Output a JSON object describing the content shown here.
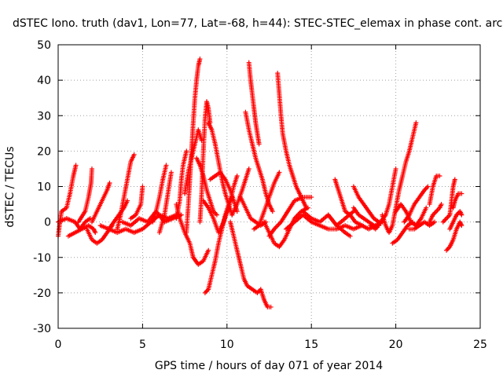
{
  "chart_data": {
    "type": "scatter",
    "title": "dSTEC Iono. truth (dav1, Lon=77, Lat=-68, h=44): STEC-STEC_elemax in phase cont. arc",
    "xlabel": "GPS time / hours of day 071 of year 2014",
    "ylabel": "dSTEC  / TECUs",
    "xlim": [
      0,
      25
    ],
    "ylim": [
      -30,
      50
    ],
    "xticks": [
      "0",
      "5",
      "10",
      "15",
      "20",
      "25"
    ],
    "yticks": [
      "-30",
      "-20",
      "-10",
      "0",
      "10",
      "20",
      "30",
      "40",
      "50"
    ],
    "grid": true,
    "legend": "none",
    "marker": "plus",
    "color": "#ff0000",
    "arcs": [
      [
        [
          0.0,
          -4
        ],
        [
          0.1,
          0
        ],
        [
          0.2,
          3
        ],
        [
          0.5,
          4
        ],
        [
          0.7,
          8
        ],
        [
          0.9,
          13
        ],
        [
          1.05,
          16
        ]
      ],
      [
        [
          0.0,
          0
        ],
        [
          0.5,
          1
        ],
        [
          1.0,
          0
        ],
        [
          1.3,
          -2
        ],
        [
          1.6,
          0
        ],
        [
          1.9,
          1
        ]
      ],
      [
        [
          0.6,
          -4
        ],
        [
          1.0,
          -3
        ],
        [
          1.4,
          -2
        ],
        [
          1.8,
          -1
        ],
        [
          2.1,
          -2
        ],
        [
          2.2,
          -3
        ]
      ],
      [
        [
          1.2,
          0
        ],
        [
          1.6,
          3
        ],
        [
          1.8,
          7
        ],
        [
          1.95,
          11
        ],
        [
          2.0,
          15
        ]
      ],
      [
        [
          1.7,
          -2
        ],
        [
          2.0,
          -5
        ],
        [
          2.3,
          -6
        ],
        [
          2.6,
          -5
        ],
        [
          2.9,
          -3
        ],
        [
          3.2,
          -1
        ]
      ],
      [
        [
          2.0,
          0
        ],
        [
          2.3,
          3
        ],
        [
          2.6,
          6
        ],
        [
          2.9,
          9
        ],
        [
          3.05,
          11
        ]
      ],
      [
        [
          3.0,
          -2
        ],
        [
          3.3,
          0
        ],
        [
          3.6,
          2
        ],
        [
          3.9,
          4
        ],
        [
          4.1,
          6
        ]
      ],
      [
        [
          3.5,
          -2
        ],
        [
          3.7,
          2
        ],
        [
          3.9,
          7
        ],
        [
          4.1,
          12
        ],
        [
          4.3,
          17
        ],
        [
          4.5,
          19
        ]
      ],
      [
        [
          2.5,
          -1
        ],
        [
          3.0,
          -2
        ],
        [
          3.5,
          -3
        ],
        [
          4.0,
          -2
        ],
        [
          4.5,
          -3
        ],
        [
          5.0,
          -2
        ],
        [
          5.5,
          0
        ],
        [
          6.0,
          2
        ],
        [
          6.5,
          1
        ],
        [
          7.0,
          2
        ]
      ],
      [
        [
          3.8,
          0
        ],
        [
          4.3,
          -1
        ],
        [
          4.8,
          1
        ],
        [
          5.3,
          0
        ],
        [
          5.8,
          3
        ],
        [
          6.3,
          0
        ],
        [
          6.8,
          1
        ],
        [
          7.3,
          2
        ]
      ],
      [
        [
          5.0,
          10
        ],
        [
          4.9,
          5
        ],
        [
          4.6,
          2
        ],
        [
          4.3,
          1
        ]
      ],
      [
        [
          5.6,
          0
        ],
        [
          5.8,
          3
        ],
        [
          6.0,
          7
        ],
        [
          6.2,
          12
        ],
        [
          6.4,
          16
        ]
      ],
      [
        [
          6.0,
          -3
        ],
        [
          6.3,
          2
        ],
        [
          6.5,
          8
        ],
        [
          6.7,
          14
        ]
      ],
      [
        [
          7.0,
          1
        ],
        [
          7.2,
          6
        ],
        [
          7.3,
          12
        ],
        [
          7.4,
          16
        ],
        [
          7.6,
          20
        ]
      ],
      [
        [
          7.0,
          5
        ],
        [
          7.2,
          1
        ],
        [
          7.5,
          -3
        ],
        [
          7.8,
          -6
        ],
        [
          8.0,
          -10
        ],
        [
          8.3,
          -12
        ],
        [
          8.6,
          -11
        ],
        [
          8.9,
          -8
        ]
      ],
      [
        [
          7.6,
          -3
        ],
        [
          7.7,
          4
        ],
        [
          7.8,
          12
        ],
        [
          7.9,
          20
        ],
        [
          8.0,
          28
        ],
        [
          8.1,
          35
        ],
        [
          8.2,
          40
        ],
        [
          8.3,
          44
        ],
        [
          8.4,
          46
        ]
      ],
      [
        [
          7.5,
          8
        ],
        [
          7.7,
          14
        ],
        [
          7.9,
          18
        ],
        [
          8.1,
          22
        ],
        [
          8.3,
          26
        ],
        [
          8.5,
          23
        ]
      ],
      [
        [
          8.4,
          0
        ],
        [
          8.5,
          8
        ],
        [
          8.6,
          20
        ],
        [
          8.7,
          29
        ],
        [
          8.8,
          34
        ],
        [
          8.9,
          32
        ],
        [
          9.0,
          28
        ]
      ],
      [
        [
          8.9,
          28
        ],
        [
          9.0,
          27
        ],
        [
          9.1,
          26
        ],
        [
          9.3,
          22
        ],
        [
          9.5,
          17
        ],
        [
          9.7,
          12
        ],
        [
          9.9,
          8
        ],
        [
          10.1,
          5
        ],
        [
          10.3,
          2
        ]
      ],
      [
        [
          8.2,
          18
        ],
        [
          8.4,
          16
        ],
        [
          8.6,
          13
        ],
        [
          8.8,
          9
        ],
        [
          9.0,
          6
        ],
        [
          9.2,
          3
        ],
        [
          9.4,
          2
        ]
      ],
      [
        [
          8.7,
          -20
        ],
        [
          8.9,
          -19
        ],
        [
          9.1,
          -15
        ],
        [
          9.3,
          -11
        ],
        [
          9.5,
          -6
        ],
        [
          9.7,
          -2
        ],
        [
          9.9,
          2
        ],
        [
          10.1,
          5
        ],
        [
          10.3,
          7
        ]
      ],
      [
        [
          9.0,
          12
        ],
        [
          9.3,
          13
        ],
        [
          9.6,
          14
        ],
        [
          9.9,
          12
        ],
        [
          10.2,
          9
        ],
        [
          10.4,
          6
        ],
        [
          10.6,
          3
        ]
      ],
      [
        [
          8.6,
          6
        ],
        [
          8.9,
          4
        ],
        [
          9.2,
          1
        ],
        [
          9.5,
          -3
        ],
        [
          9.8,
          0
        ],
        [
          10.1,
          4
        ],
        [
          10.4,
          10
        ],
        [
          10.6,
          13
        ]
      ],
      [
        [
          10.2,
          0
        ],
        [
          10.4,
          -4
        ],
        [
          10.6,
          -8
        ],
        [
          10.8,
          -12
        ],
        [
          11.0,
          -16
        ],
        [
          11.2,
          -18
        ],
        [
          11.5,
          -19
        ],
        [
          11.8,
          -20
        ],
        [
          12.0,
          -19
        ],
        [
          12.2,
          -22
        ],
        [
          12.4,
          -24
        ],
        [
          12.6,
          -24
        ]
      ],
      [
        [
          11.3,
          45
        ],
        [
          11.4,
          40
        ],
        [
          11.5,
          36
        ],
        [
          11.6,
          32
        ],
        [
          11.7,
          28
        ],
        [
          11.8,
          25
        ],
        [
          11.9,
          22
        ]
      ],
      [
        [
          10.3,
          2
        ],
        [
          10.6,
          5
        ],
        [
          10.9,
          9
        ],
        [
          11.1,
          12
        ],
        [
          11.3,
          15
        ]
      ],
      [
        [
          11.1,
          31
        ],
        [
          11.3,
          26
        ],
        [
          11.5,
          22
        ],
        [
          11.7,
          18
        ],
        [
          11.9,
          15
        ],
        [
          12.1,
          12
        ],
        [
          12.3,
          8
        ],
        [
          12.5,
          5
        ],
        [
          12.7,
          3
        ]
      ],
      [
        [
          11.6,
          -2
        ],
        [
          11.9,
          -1
        ],
        [
          12.2,
          3
        ],
        [
          12.5,
          7
        ],
        [
          12.8,
          11
        ],
        [
          13.1,
          14
        ]
      ],
      [
        [
          10.8,
          7
        ],
        [
          11.1,
          4
        ],
        [
          11.4,
          1
        ],
        [
          11.7,
          0
        ],
        [
          12.0,
          -1
        ],
        [
          12.3,
          0
        ]
      ],
      [
        [
          12.2,
          0
        ],
        [
          12.5,
          -3
        ],
        [
          12.8,
          -6
        ],
        [
          13.1,
          -7
        ],
        [
          13.4,
          -5
        ],
        [
          13.7,
          -2
        ],
        [
          14.0,
          1
        ],
        [
          14.4,
          3
        ],
        [
          14.8,
          4
        ]
      ],
      [
        [
          13.0,
          42
        ],
        [
          13.1,
          36
        ],
        [
          13.2,
          30
        ],
        [
          13.3,
          25
        ],
        [
          13.5,
          20
        ],
        [
          13.7,
          16
        ],
        [
          13.9,
          13
        ],
        [
          14.1,
          10
        ],
        [
          14.3,
          8
        ],
        [
          14.5,
          6
        ],
        [
          14.7,
          4
        ]
      ],
      [
        [
          12.5,
          -4
        ],
        [
          12.8,
          -2
        ],
        [
          13.2,
          0
        ],
        [
          13.6,
          3
        ],
        [
          14.0,
          6
        ],
        [
          14.5,
          7
        ],
        [
          15.0,
          7
        ]
      ],
      [
        [
          13.5,
          -2
        ],
        [
          14.0,
          0
        ],
        [
          14.5,
          2
        ],
        [
          15.0,
          0
        ],
        [
          15.5,
          -1
        ],
        [
          16.0,
          -2
        ],
        [
          16.5,
          -2
        ],
        [
          17.0,
          -1
        ],
        [
          17.5,
          -2
        ],
        [
          18.0,
          -1
        ]
      ],
      [
        [
          14.5,
          3
        ],
        [
          15.0,
          1
        ],
        [
          15.5,
          0
        ],
        [
          16.0,
          2
        ],
        [
          16.5,
          -1
        ],
        [
          17.0,
          1
        ],
        [
          17.5,
          3
        ]
      ],
      [
        [
          16.0,
          2
        ],
        [
          16.5,
          -1
        ],
        [
          17.0,
          -3
        ],
        [
          17.3,
          -4
        ]
      ],
      [
        [
          16.4,
          12
        ],
        [
          16.6,
          9
        ],
        [
          16.8,
          6
        ],
        [
          17.0,
          3
        ],
        [
          17.3,
          2
        ],
        [
          17.6,
          0
        ],
        [
          18.0,
          -1
        ],
        [
          18.4,
          -2
        ],
        [
          18.8,
          -1
        ],
        [
          19.2,
          0
        ]
      ],
      [
        [
          17.5,
          4
        ],
        [
          17.8,
          2
        ],
        [
          18.1,
          1
        ],
        [
          18.4,
          0
        ],
        [
          18.7,
          -1
        ],
        [
          19.0,
          -1
        ]
      ],
      [
        [
          17.5,
          10
        ],
        [
          17.8,
          7
        ],
        [
          18.1,
          5
        ],
        [
          18.4,
          3
        ],
        [
          18.7,
          1
        ],
        [
          19.0,
          0
        ]
      ],
      [
        [
          18.5,
          -1
        ],
        [
          18.8,
          -2
        ],
        [
          19.1,
          0
        ],
        [
          19.4,
          2
        ],
        [
          19.6,
          5
        ],
        [
          19.8,
          10
        ],
        [
          20.0,
          15
        ]
      ],
      [
        [
          19.2,
          2
        ],
        [
          19.4,
          -1
        ],
        [
          19.6,
          -3
        ],
        [
          19.8,
          -1
        ],
        [
          20.0,
          4
        ],
        [
          20.2,
          9
        ],
        [
          20.4,
          13
        ],
        [
          20.6,
          17
        ],
        [
          20.8,
          20
        ],
        [
          21.0,
          24
        ],
        [
          21.2,
          28
        ]
      ],
      [
        [
          19.8,
          -6
        ],
        [
          20.1,
          -5
        ],
        [
          20.4,
          -3
        ],
        [
          20.7,
          -1
        ],
        [
          21.0,
          0
        ]
      ],
      [
        [
          20.0,
          3
        ],
        [
          20.3,
          5
        ],
        [
          20.6,
          3
        ],
        [
          20.9,
          0
        ],
        [
          21.2,
          -1
        ],
        [
          21.5,
          1
        ],
        [
          21.8,
          4
        ]
      ],
      [
        [
          20.5,
          0
        ],
        [
          20.8,
          2
        ],
        [
          21.1,
          5
        ],
        [
          21.4,
          7
        ],
        [
          21.7,
          9
        ],
        [
          21.9,
          10
        ]
      ],
      [
        [
          20.8,
          -2
        ],
        [
          21.1,
          -2
        ],
        [
          21.4,
          -1
        ],
        [
          21.7,
          0
        ],
        [
          22.0,
          -1
        ],
        [
          22.3,
          0
        ]
      ],
      [
        [
          22.0,
          5
        ],
        [
          22.2,
          10
        ],
        [
          22.4,
          13
        ],
        [
          22.6,
          13
        ]
      ],
      [
        [
          22.0,
          0
        ],
        [
          22.2,
          2
        ],
        [
          22.4,
          3
        ],
        [
          22.6,
          4
        ],
        [
          22.7,
          5
        ]
      ],
      [
        [
          23.0,
          -8
        ],
        [
          23.2,
          -7
        ],
        [
          23.4,
          -5
        ],
        [
          23.6,
          -2
        ],
        [
          23.8,
          0
        ],
        [
          23.9,
          -1
        ]
      ],
      [
        [
          22.8,
          0
        ],
        [
          23.0,
          1
        ],
        [
          23.2,
          2
        ],
        [
          23.3,
          6
        ],
        [
          23.4,
          10
        ],
        [
          23.5,
          12
        ]
      ],
      [
        [
          23.4,
          4
        ],
        [
          23.5,
          6
        ],
        [
          23.7,
          8
        ],
        [
          23.9,
          8
        ]
      ],
      [
        [
          23.2,
          -2
        ],
        [
          23.4,
          0
        ],
        [
          23.6,
          2
        ],
        [
          23.8,
          3
        ],
        [
          23.9,
          2
        ]
      ]
    ]
  }
}
